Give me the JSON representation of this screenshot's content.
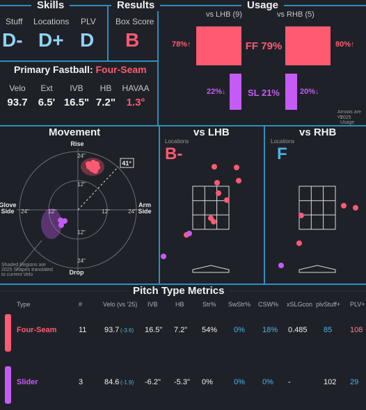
{
  "colors": {
    "accent_line": "#2b8fc0",
    "fastball": "#ff5a72",
    "slider": "#c55bf5",
    "grade_blue": "#8fd3f2",
    "bg": "#1f2128"
  },
  "skills": {
    "title": "Skills",
    "stuff_label": "Stuff",
    "stuff_grade": "D-",
    "locations_label": "Locations",
    "locations_grade": "D+",
    "plv_label": "PLV",
    "plv_grade": "D"
  },
  "results": {
    "title": "Results",
    "box_label": "Box Score",
    "box_grade": "B"
  },
  "primary_fastball": {
    "label": "Primary Fastball:",
    "pitch": "Four-Seam",
    "metrics": [
      {
        "label": "Velo",
        "value": "93.7"
      },
      {
        "label": "Ext",
        "value": "6.5'"
      },
      {
        "label": "IVB",
        "value": "16.5\""
      },
      {
        "label": "HB",
        "value": "7.2\""
      },
      {
        "label": "HAVAA",
        "value": "1.3°"
      }
    ]
  },
  "usage": {
    "title": "Usage",
    "vs_lhb": "vs LHB (9)",
    "vs_rhb": "vs RHB (5)",
    "ff_lhb": "78%↑",
    "ff_center": "FF 79%",
    "ff_rhb": "80%↑",
    "sl_lhb": "22%↓",
    "sl_center": "SL 21%",
    "sl_rhb": "20%↓",
    "note_line1": "Arrows are vs",
    "note_line2": "2025 Usage",
    "ff_lhb_value": 78,
    "ff_rhb_value": 80,
    "sl_lhb_value": 22,
    "sl_rhb_value": 20
  },
  "movement": {
    "title": "Movement",
    "rise": "Rise",
    "drop": "Drop",
    "glove_side_1": "Glove",
    "glove_side_2": "Side",
    "arm_side_1": "Arm",
    "arm_side_2": "Side",
    "ring_24": "24\"",
    "ring_12": "12\"",
    "arm_angle": "41°",
    "note": [
      "Shaded Regions are",
      "2025 Shapes translated",
      "to current Velo"
    ]
  },
  "vs_lhb": {
    "title": "vs LHB",
    "locations_label": "Locations",
    "grade": "B-"
  },
  "vs_rhb": {
    "title": "vs RHB",
    "locations_label": "Locations",
    "grade": "F"
  },
  "table": {
    "title": "Pitch Type Metrics",
    "headers": [
      "Type",
      "#",
      "Velo (vs '25)",
      "IVB",
      "HB",
      "Str%",
      "SwStr%",
      "CSW%",
      "xSLGcon",
      "plvStuff+",
      "PLV+"
    ],
    "rows": [
      {
        "type": "Four-Seam",
        "count": "11",
        "velo": "93.7",
        "velo_diff": "(-3.6)",
        "ivb": "16.5\"",
        "hb": "7.2\"",
        "str": "54%",
        "swstr": "0%",
        "csw": "18%",
        "xslg": "0.485",
        "stuff": "85",
        "plv": "108"
      },
      {
        "type": "Slider",
        "count": "3",
        "velo": "84.6",
        "velo_diff": "(-1.9)",
        "ivb": "-6.2\"",
        "hb": "-5.3\"",
        "str": "0%",
        "swstr": "0%",
        "csw": "0%",
        "xslg": "-",
        "stuff": "102",
        "plv": "29"
      }
    ]
  }
}
